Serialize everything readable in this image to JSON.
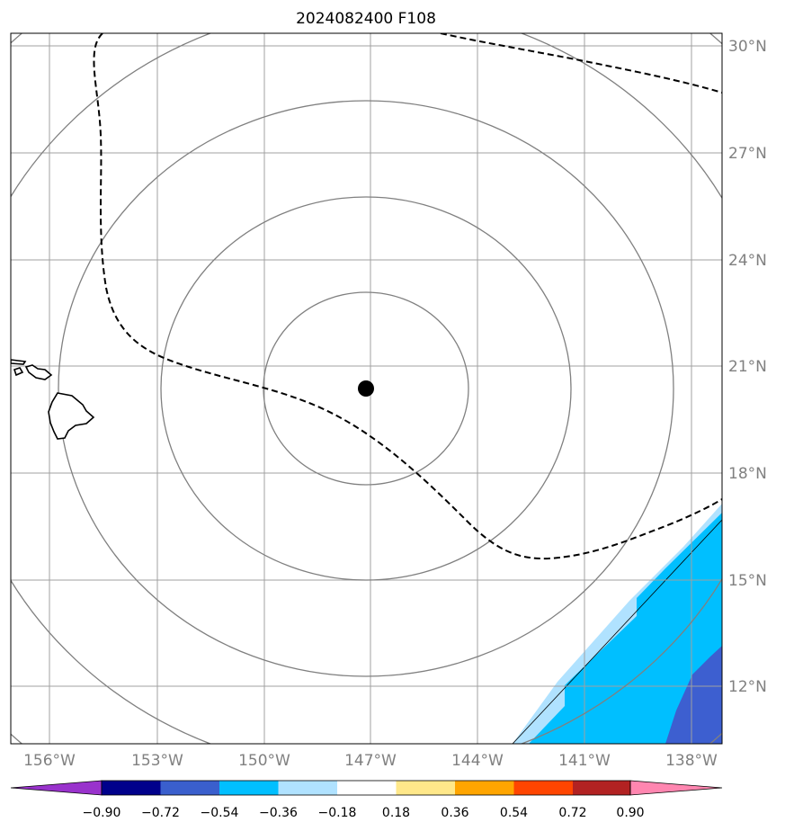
{
  "title": "2024082400 F108",
  "map": {
    "lon_labels": [
      "156°W",
      "153°W",
      "150°W",
      "147°W",
      "144°W",
      "141°W",
      "138°W"
    ],
    "lat_labels": [
      "30°N",
      "27°N",
      "24°N",
      "21°N",
      "18°N",
      "15°N",
      "12°N"
    ],
    "center_marker": {
      "lon": -147.0,
      "lat": 20.4
    },
    "colors": {
      "grid": "#a0a0a0",
      "rings": "#808080",
      "contour": "#000000",
      "fill_light": "#b0e2ff",
      "fill_mid": "#00bfff",
      "fill_dark": "#3d5fd0"
    }
  },
  "colorbar": {
    "ticks": [
      "−0.90",
      "−0.72",
      "−0.54",
      "−0.36",
      "−0.18",
      "0.18",
      "0.36",
      "0.54",
      "0.72",
      "0.90"
    ],
    "colors": [
      "#9932cc",
      "#00008b",
      "#3a5fcd",
      "#00bfff",
      "#b0e2ff",
      "#ffffff",
      "#ffe88a",
      "#ffa500",
      "#ff4500",
      "#b22222",
      "#ff86b0"
    ]
  }
}
